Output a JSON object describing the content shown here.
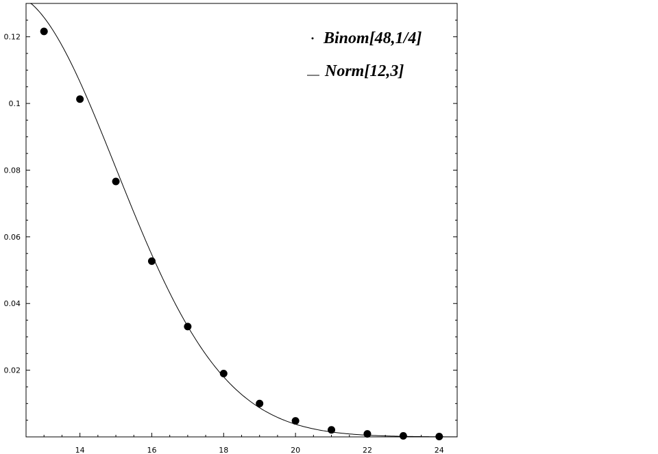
{
  "chart_data": {
    "type": "scatter",
    "title": "",
    "xlabel": "",
    "ylabel": "",
    "xlim": [
      12.5,
      24.5
    ],
    "ylim": [
      0,
      0.13
    ],
    "grid": false,
    "legend_position": "top-right",
    "x_ticks": [
      14,
      16,
      18,
      20,
      22,
      24
    ],
    "x_tick_labels": [
      "14",
      "16",
      "18",
      "20",
      "22",
      "24"
    ],
    "y_ticks": [
      0.02,
      0.04,
      0.06,
      0.08,
      0.1,
      0.12
    ],
    "y_tick_labels": [
      "0.02",
      "0.04",
      "0.06",
      "0.08",
      "0.1",
      "0.12"
    ],
    "series": [
      {
        "name": "Binom[48,1/4]",
        "kind": "points",
        "color": "#000000",
        "x": [
          13,
          14,
          15,
          16,
          17,
          18,
          19,
          20,
          21,
          22,
          23,
          24
        ],
        "y": [
          0.1216,
          0.1013,
          0.0766,
          0.0527,
          0.0331,
          0.019,
          0.01,
          0.0048,
          0.0021,
          0.0009,
          0.0003,
          0.0001
        ]
      },
      {
        "name": "Norm[12,3]",
        "kind": "curve",
        "color": "#000000",
        "mean": 12,
        "sd": 3
      }
    ]
  }
}
